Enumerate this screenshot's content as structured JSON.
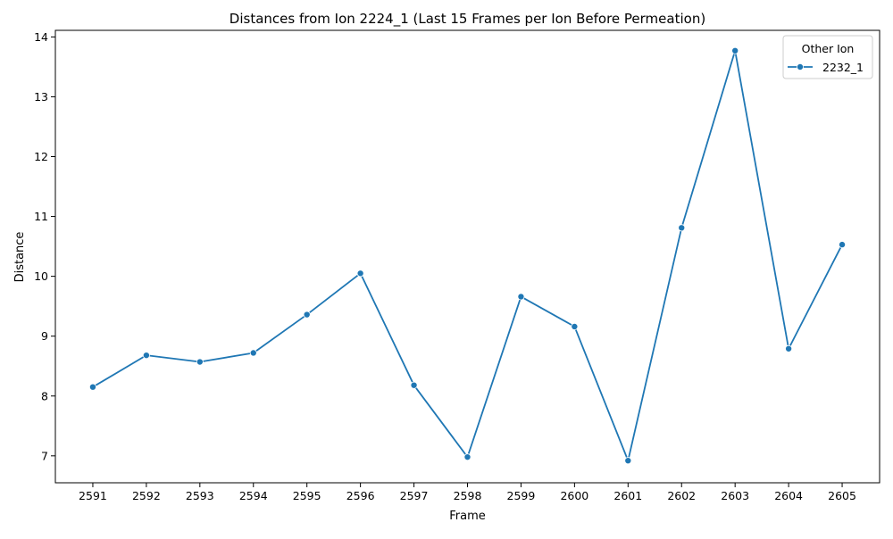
{
  "chart_data": {
    "type": "line",
    "title": "Distances from Ion 2224_1 (Last 15 Frames per Ion Before Permeation)",
    "xlabel": "Frame",
    "ylabel": "Distance",
    "x": [
      2591,
      2592,
      2593,
      2594,
      2595,
      2596,
      2597,
      2598,
      2599,
      2600,
      2601,
      2602,
      2603,
      2604,
      2605
    ],
    "x_ticks": [
      "2591",
      "2592",
      "2593",
      "2594",
      "2595",
      "2596",
      "2597",
      "2598",
      "2599",
      "2600",
      "2601",
      "2602",
      "2603",
      "2604",
      "2605"
    ],
    "y_ticks": [
      "7",
      "8",
      "9",
      "10",
      "11",
      "12",
      "13",
      "14"
    ],
    "xlim": [
      2590.3,
      2605.7
    ],
    "ylim": [
      6.55,
      14.11
    ],
    "grid": false,
    "legend": {
      "title": "Other Ion",
      "position": "top-right"
    },
    "series": [
      {
        "name": "2232_1",
        "color": "#1f77b4",
        "marker": "circle",
        "values": [
          8.15,
          8.68,
          8.57,
          8.72,
          9.36,
          10.05,
          8.18,
          6.98,
          9.66,
          9.16,
          6.92,
          10.81,
          13.77,
          8.79,
          10.53
        ]
      }
    ]
  }
}
